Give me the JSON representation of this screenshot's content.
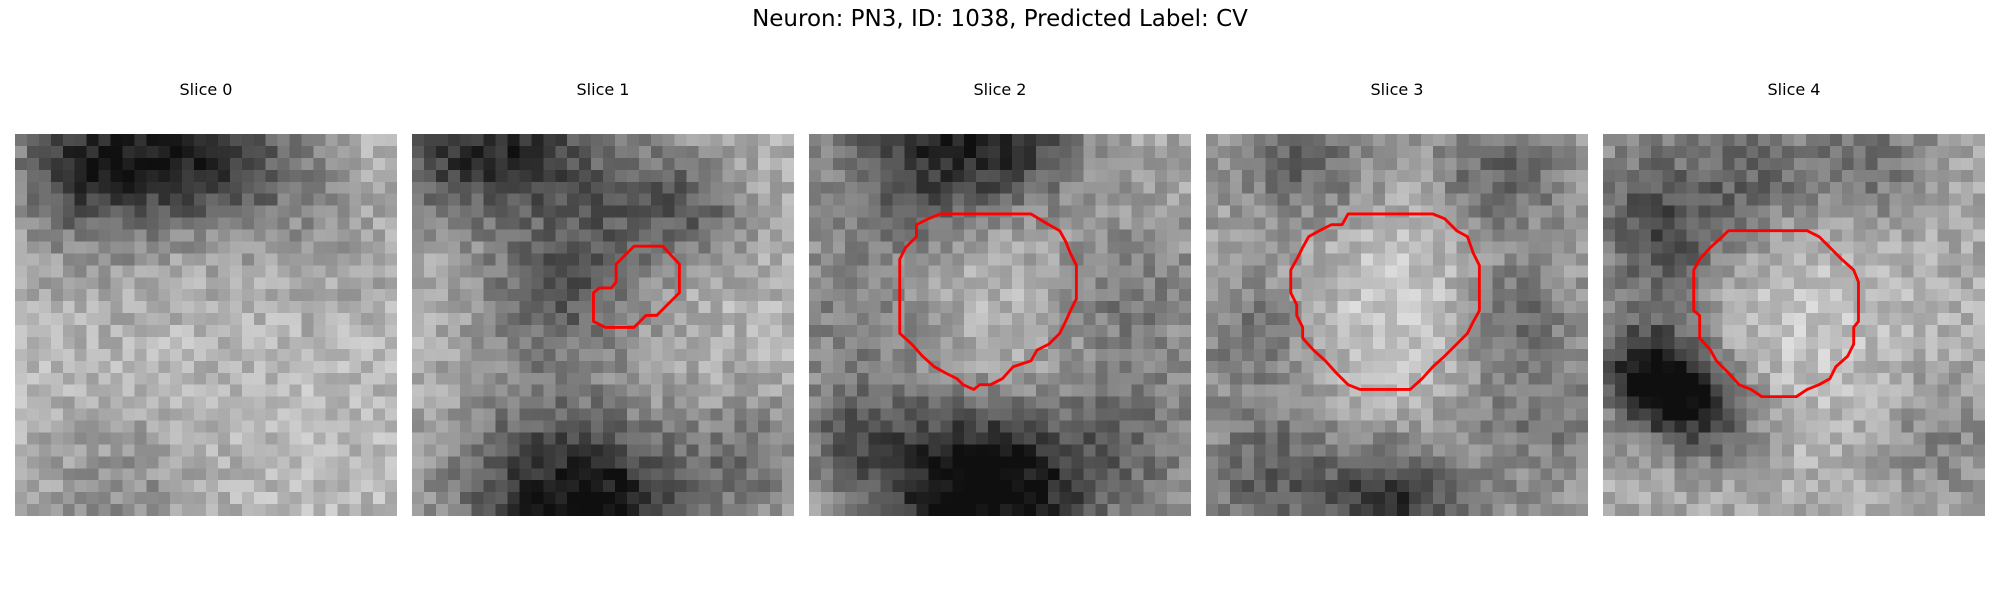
{
  "figure": {
    "title": "Neuron: PN3, ID: 1038, Predicted Label: CV"
  },
  "panels": [
    {
      "title": "Slice 0",
      "contour": null
    },
    {
      "title": "Slice 1",
      "contour": [
        [
          18.6,
          9.4
        ],
        [
          21.0,
          9.4
        ],
        [
          22.4,
          10.9
        ],
        [
          22.4,
          13.3
        ],
        [
          20.5,
          15.2
        ],
        [
          19.6,
          15.2
        ],
        [
          18.6,
          16.2
        ],
        [
          16.2,
          16.2
        ],
        [
          15.2,
          15.7
        ],
        [
          15.2,
          13.3
        ],
        [
          15.7,
          12.9
        ],
        [
          16.7,
          12.9
        ],
        [
          17.1,
          12.4
        ],
        [
          17.1,
          10.9
        ]
      ],
      "slice_index": 1
    },
    {
      "title": "Slice 2",
      "contour": [
        [
          12.4,
          6.7
        ],
        [
          18.6,
          6.7
        ],
        [
          20.1,
          7.6
        ],
        [
          21.0,
          8.1
        ],
        [
          21.5,
          9.0
        ],
        [
          21.9,
          10.0
        ],
        [
          22.4,
          11.0
        ],
        [
          22.4,
          13.8
        ],
        [
          21.9,
          14.8
        ],
        [
          21.5,
          15.7
        ],
        [
          21.0,
          16.7
        ],
        [
          20.1,
          17.6
        ],
        [
          19.1,
          18.1
        ],
        [
          18.6,
          19.0
        ],
        [
          17.1,
          19.5
        ],
        [
          16.2,
          20.5
        ],
        [
          15.2,
          21.0
        ],
        [
          14.3,
          21.0
        ],
        [
          13.8,
          21.4
        ],
        [
          12.9,
          21.0
        ],
        [
          12.4,
          20.5
        ],
        [
          11.4,
          20.0
        ],
        [
          10.5,
          19.5
        ],
        [
          9.5,
          18.6
        ],
        [
          8.6,
          17.6
        ],
        [
          7.6,
          16.7
        ],
        [
          7.6,
          15.7
        ],
        [
          7.6,
          14.8
        ],
        [
          7.6,
          13.8
        ],
        [
          7.6,
          11.9
        ],
        [
          7.6,
          10.5
        ],
        [
          8.1,
          9.5
        ],
        [
          9.0,
          8.6
        ],
        [
          9.0,
          7.6
        ],
        [
          10.0,
          7.1
        ],
        [
          11.0,
          6.7
        ]
      ],
      "slice_index": 2
    },
    {
      "title": "Slice 3",
      "contour": [
        [
          11.9,
          6.7
        ],
        [
          19.0,
          6.7
        ],
        [
          20.0,
          7.1
        ],
        [
          21.0,
          8.1
        ],
        [
          21.9,
          8.6
        ],
        [
          22.4,
          10.0
        ],
        [
          22.9,
          11.0
        ],
        [
          22.9,
          14.8
        ],
        [
          22.4,
          15.7
        ],
        [
          21.9,
          16.7
        ],
        [
          21.0,
          17.6
        ],
        [
          20.0,
          18.6
        ],
        [
          19.0,
          19.5
        ],
        [
          18.1,
          20.5
        ],
        [
          17.1,
          21.4
        ],
        [
          12.9,
          21.4
        ],
        [
          11.9,
          21.0
        ],
        [
          10.9,
          20.0
        ],
        [
          10.0,
          19.0
        ],
        [
          9.0,
          18.1
        ],
        [
          8.1,
          17.1
        ],
        [
          8.1,
          16.2
        ],
        [
          7.6,
          15.2
        ],
        [
          7.6,
          14.3
        ],
        [
          7.1,
          13.3
        ],
        [
          7.1,
          11.4
        ],
        [
          7.6,
          10.5
        ],
        [
          8.1,
          9.5
        ],
        [
          8.6,
          8.6
        ],
        [
          9.5,
          8.1
        ],
        [
          10.5,
          7.6
        ],
        [
          11.4,
          7.6
        ]
      ],
      "slice_index": 3
    },
    {
      "title": "Slice 4",
      "contour": [
        [
          10.5,
          8.1
        ],
        [
          17.1,
          8.1
        ],
        [
          18.1,
          8.6
        ],
        [
          19.0,
          9.5
        ],
        [
          20.0,
          10.5
        ],
        [
          21.0,
          11.4
        ],
        [
          21.4,
          12.4
        ],
        [
          21.4,
          15.7
        ],
        [
          21.0,
          16.2
        ],
        [
          21.0,
          17.6
        ],
        [
          20.5,
          18.6
        ],
        [
          19.5,
          19.5
        ],
        [
          19.0,
          20.5
        ],
        [
          18.1,
          21.0
        ],
        [
          17.1,
          21.4
        ],
        [
          16.2,
          22.0
        ],
        [
          13.3,
          22.0
        ],
        [
          12.4,
          21.4
        ],
        [
          11.4,
          21.0
        ],
        [
          10.5,
          20.0
        ],
        [
          9.5,
          19.0
        ],
        [
          9.0,
          18.1
        ],
        [
          8.1,
          17.1
        ],
        [
          8.1,
          16.2
        ],
        [
          8.1,
          15.2
        ],
        [
          7.6,
          14.8
        ],
        [
          7.6,
          11.4
        ],
        [
          8.1,
          10.5
        ],
        [
          9.0,
          9.5
        ],
        [
          10.0,
          8.6
        ]
      ],
      "slice_index": 4
    }
  ],
  "colors": {
    "contour": "#ff0000",
    "background": "#ffffff"
  }
}
